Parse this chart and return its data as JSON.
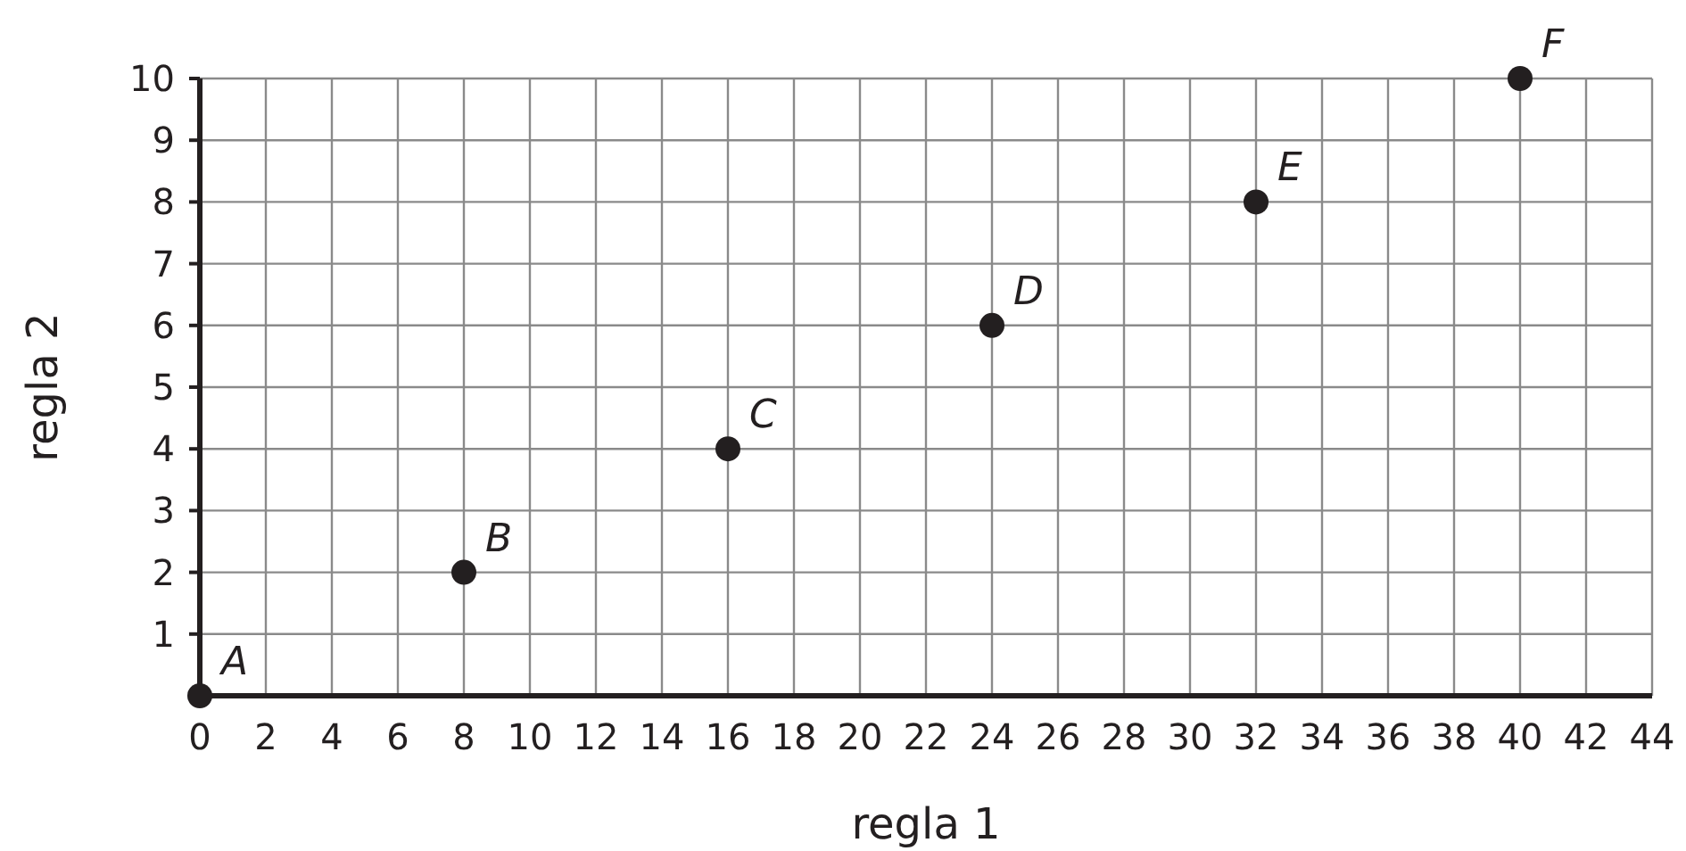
{
  "chart_data": {
    "type": "scatter",
    "xlabel": "regla 1",
    "ylabel": "regla 2",
    "x": [
      0,
      8,
      16,
      24,
      32,
      40
    ],
    "values": [
      0,
      2,
      4,
      6,
      8,
      10
    ],
    "color": "#231f20",
    "marker": "circle",
    "grid": true,
    "xlim": [
      0,
      44
    ],
    "ylim": [
      0,
      10
    ],
    "xticks": [
      0,
      2,
      4,
      6,
      8,
      10,
      12,
      14,
      16,
      18,
      20,
      22,
      24,
      26,
      28,
      30,
      32,
      34,
      36,
      38,
      40,
      42,
      44
    ],
    "yticks": [
      1,
      2,
      3,
      4,
      5,
      6,
      7,
      8,
      9,
      10
    ],
    "annotations": [
      {
        "text": "A",
        "x": 0,
        "y": 0
      },
      {
        "text": "B",
        "x": 8,
        "y": 2
      },
      {
        "text": "C",
        "x": 16,
        "y": 4
      },
      {
        "text": "D",
        "x": 24,
        "y": 6
      },
      {
        "text": "E",
        "x": 32,
        "y": 8
      },
      {
        "text": "F",
        "x": 40,
        "y": 10
      }
    ]
  }
}
